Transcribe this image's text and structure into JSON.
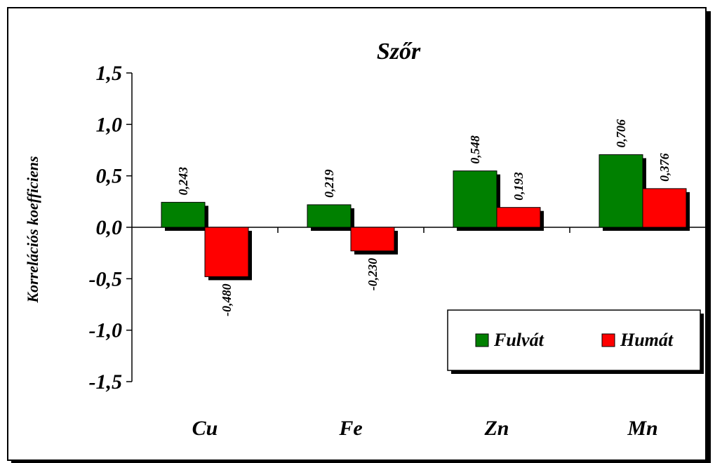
{
  "chart_data": {
    "type": "bar",
    "title": "Szőr",
    "xlabel": "",
    "ylabel": "Korrelációs koefficiens",
    "categories": [
      "Cu",
      "Fe",
      "Zn",
      "Mn"
    ],
    "series": [
      {
        "name": "Fulvát",
        "values": [
          0.243,
          0.219,
          0.548,
          0.706
        ],
        "labels": [
          "0,243",
          "0,219",
          "0,548",
          "0,706"
        ],
        "color": "#008000"
      },
      {
        "name": "Humát",
        "values": [
          -0.48,
          -0.23,
          0.193,
          0.376
        ],
        "labels": [
          "-0,480",
          "-0,230",
          "0,193",
          "0,376"
        ],
        "color": "#ff0000"
      }
    ],
    "ylim": [
      -1.5,
      1.5
    ],
    "yticks": [
      1.5,
      1.0,
      0.5,
      0.0,
      -0.5,
      -1.0,
      -1.5
    ],
    "ytick_labels": [
      "1,5",
      "1,0",
      "0,5",
      "0,0",
      "-0,5",
      "-1,0",
      "-1,5"
    ],
    "grid": false,
    "legend_position": "bottom-right"
  }
}
